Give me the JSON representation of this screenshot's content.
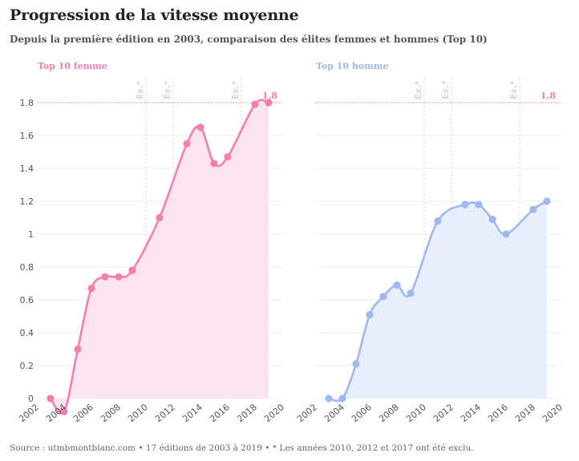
{
  "title": "Progression de la vitesse moyenne",
  "subtitle": "Depuis la première édition en 2003, comparaison des élites femmes et hommes (Top 10)",
  "source": "Source : utmbmontblanc.com • 17 éditions de 2003 à 2019 • * Les années 2010, 2012 et 2017 ont été exclu.",
  "colors": {
    "femme_line": "#f47fae",
    "femme_fill": "#fde3ee",
    "homme_line": "#9fb8ee",
    "homme_fill": "#e8eefb",
    "reference": "#f47fae",
    "excluded_text": "#d6d6d6"
  },
  "chart_data": [
    {
      "type": "line",
      "panel_title": "Top 10 femme",
      "x": [
        2003,
        2004,
        2005,
        2006,
        2007,
        2008,
        2009,
        2011,
        2013,
        2014,
        2015,
        2016,
        2018,
        2019
      ],
      "values": [
        0.0,
        -0.08,
        0.3,
        0.67,
        0.74,
        0.74,
        0.78,
        1.1,
        1.55,
        1.65,
        1.43,
        1.47,
        1.79,
        1.8
      ],
      "xlim": [
        2002,
        2020
      ],
      "x_ticks": [
        "2002",
        "2004",
        "2006",
        "2008",
        "2010",
        "2012",
        "2014",
        "2016",
        "2018",
        "2020"
      ],
      "ylim": [
        0,
        1.8
      ],
      "y_ticks": [
        "0",
        "0.2",
        "0.4",
        "0.6",
        "0.8",
        "1",
        "1.2",
        "1.4",
        "1.6",
        "1.8"
      ],
      "reference_line": {
        "value": 1.8,
        "label": "1.8"
      },
      "excluded_years": [
        2010,
        2012,
        2017
      ],
      "excluded_label": "Ex.*",
      "area_fill": true,
      "grid": "horizontal"
    },
    {
      "type": "line",
      "panel_title": "Top 10 homme",
      "x": [
        2003,
        2004,
        2005,
        2006,
        2007,
        2008,
        2009,
        2011,
        2013,
        2014,
        2015,
        2016,
        2018,
        2019
      ],
      "values": [
        0.0,
        0.0,
        0.21,
        0.51,
        0.62,
        0.69,
        0.64,
        1.08,
        1.18,
        1.18,
        1.09,
        1.0,
        1.15,
        1.2
      ],
      "xlim": [
        2002,
        2020
      ],
      "x_ticks": [
        "2002",
        "2004",
        "2006",
        "2008",
        "2010",
        "2012",
        "2014",
        "2016",
        "2018",
        "2020"
      ],
      "ylim": [
        0,
        1.8
      ],
      "reference_line": {
        "value": 1.8,
        "label": "1.8"
      },
      "excluded_years": [
        2010,
        2012,
        2017
      ],
      "excluded_label": "Ex.*",
      "area_fill": true,
      "grid": "horizontal"
    }
  ]
}
